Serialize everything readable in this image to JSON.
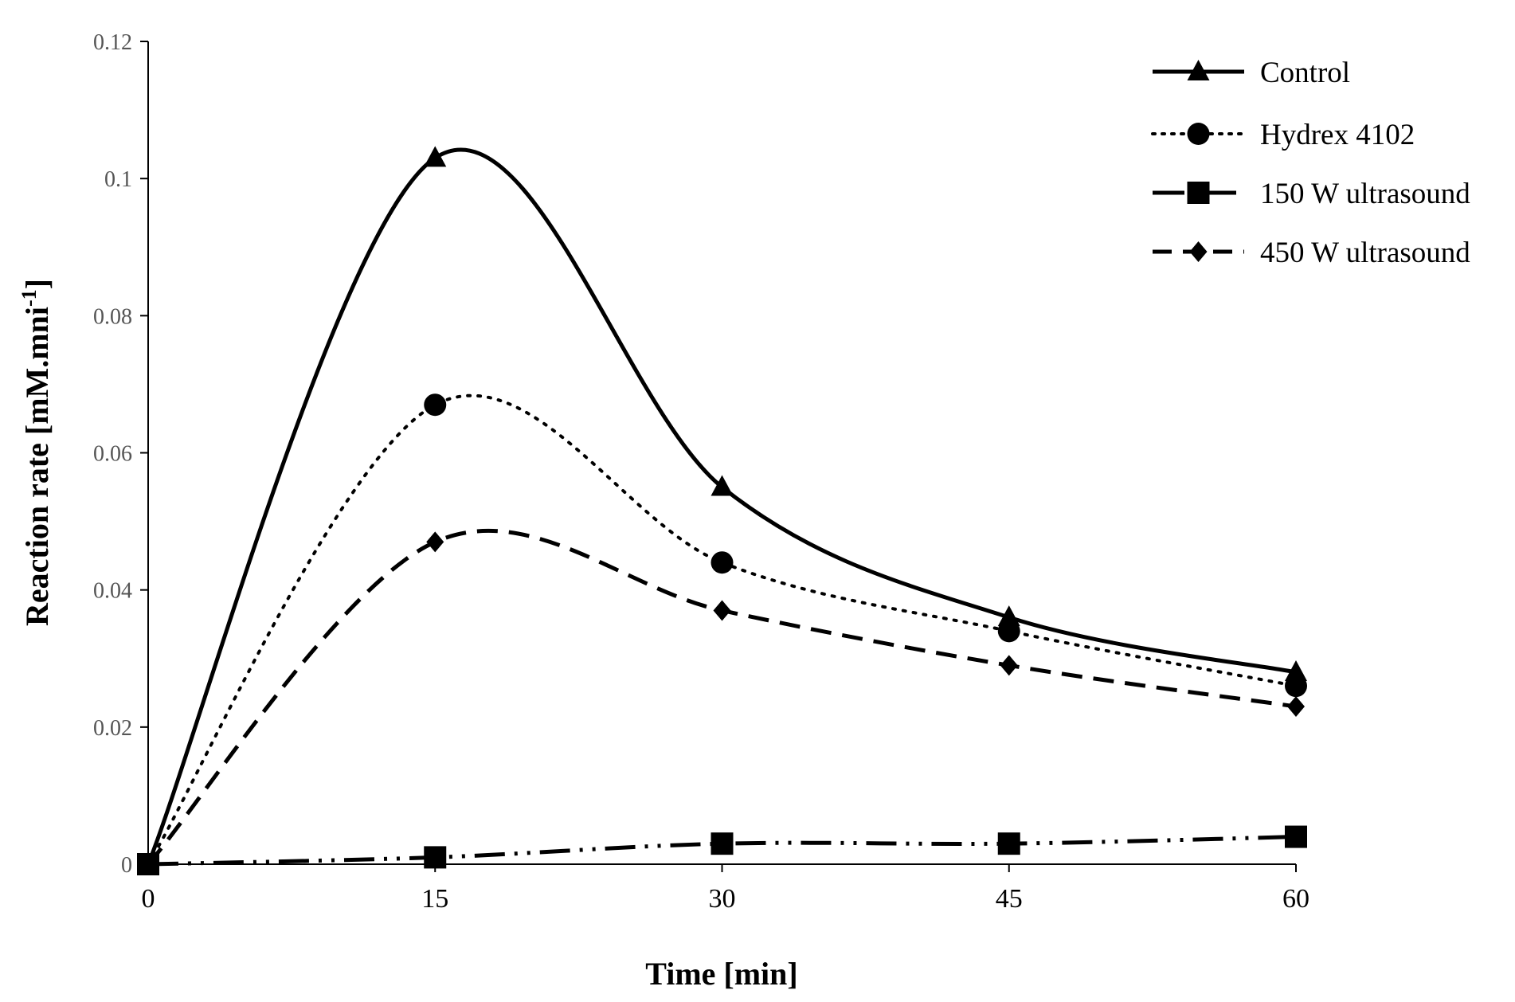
{
  "chart_data": {
    "type": "line",
    "title": "",
    "xlabel": "Time [min]",
    "ylabel_main": "Reaction rate [mM.mni",
    "ylabel_sup": "-1",
    "ylabel_close": "]",
    "x": [
      0,
      15,
      30,
      45,
      60
    ],
    "xlim": [
      0,
      60
    ],
    "ylim": [
      0,
      0.12
    ],
    "xticks": [
      "0",
      "15",
      "30",
      "45",
      "60"
    ],
    "yticks": [
      "0",
      "0.02",
      "0.04",
      "0.06",
      "0.08",
      "0.1",
      "0.12"
    ],
    "ytick_values": [
      0,
      0.02,
      0.04,
      0.06,
      0.08,
      0.1,
      0.12
    ],
    "grid": false,
    "legend_position": "top-right",
    "series": [
      {
        "name": "Control",
        "values": [
          0,
          0.103,
          0.055,
          0.036,
          0.028
        ],
        "marker": "triangle",
        "dash": "solid"
      },
      {
        "name": "Hydrex 4102",
        "values": [
          0,
          0.067,
          0.044,
          0.034,
          0.026
        ],
        "marker": "circle",
        "dash": "dotted"
      },
      {
        "name": "150 W ultrasound",
        "values": [
          0,
          0.001,
          0.003,
          0.003,
          0.004
        ],
        "marker": "square",
        "dash": "dash-dot-dot"
      },
      {
        "name": "450 W ultrasound",
        "values": [
          0,
          0.047,
          0.037,
          0.029,
          0.023
        ],
        "marker": "diamond",
        "dash": "dashed"
      }
    ]
  }
}
